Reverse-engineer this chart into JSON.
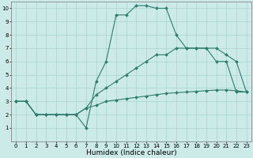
{
  "line1_x": [
    0,
    1,
    2,
    3,
    4,
    5,
    6,
    7,
    8,
    9,
    10,
    11,
    12,
    13,
    14,
    15,
    16,
    17,
    18,
    19,
    20,
    21,
    22,
    23
  ],
  "line1_y": [
    3,
    3,
    2,
    2,
    2,
    2,
    2,
    1,
    4.5,
    6,
    9.5,
    9.5,
    10.2,
    10.2,
    10,
    10,
    8,
    7,
    7,
    7,
    6,
    6,
    3.7,
    3.7
  ],
  "line2_x": [
    0,
    1,
    2,
    3,
    4,
    5,
    6,
    7,
    8,
    9,
    10,
    11,
    12,
    13,
    14,
    15,
    16,
    17,
    18,
    19,
    20,
    21,
    22,
    23
  ],
  "line2_y": [
    3,
    3,
    2,
    2,
    2,
    2,
    2,
    2.5,
    3.5,
    4.0,
    4.5,
    5.0,
    5.5,
    6.0,
    6.5,
    6.5,
    7.0,
    7.0,
    7.0,
    7.0,
    7.0,
    6.5,
    6.0,
    3.7
  ],
  "line3_x": [
    0,
    1,
    2,
    3,
    4,
    5,
    6,
    7,
    8,
    9,
    10,
    11,
    12,
    13,
    14,
    15,
    16,
    17,
    18,
    19,
    20,
    21,
    22,
    23
  ],
  "line3_y": [
    3,
    3,
    2,
    2,
    2,
    2,
    2,
    2.5,
    2.7,
    3.0,
    3.1,
    3.2,
    3.3,
    3.4,
    3.5,
    3.6,
    3.65,
    3.7,
    3.75,
    3.8,
    3.85,
    3.85,
    3.8,
    3.7
  ],
  "line_color": "#2d7d6e",
  "bg_color": "#cceae8",
  "grid_color": "#aad4d0",
  "xlabel": "Humidex (Indice chaleur)",
  "xlim": [
    -0.5,
    23.5
  ],
  "ylim": [
    0,
    10.5
  ],
  "xticks": [
    0,
    1,
    2,
    3,
    4,
    5,
    6,
    7,
    8,
    9,
    10,
    11,
    12,
    13,
    14,
    15,
    16,
    17,
    18,
    19,
    20,
    21,
    22,
    23
  ],
  "yticks": [
    1,
    2,
    3,
    4,
    5,
    6,
    7,
    8,
    9,
    10
  ],
  "tick_fontsize": 5.0,
  "xlabel_fontsize": 6.5,
  "marker_size": 2.0,
  "linewidth": 0.8
}
